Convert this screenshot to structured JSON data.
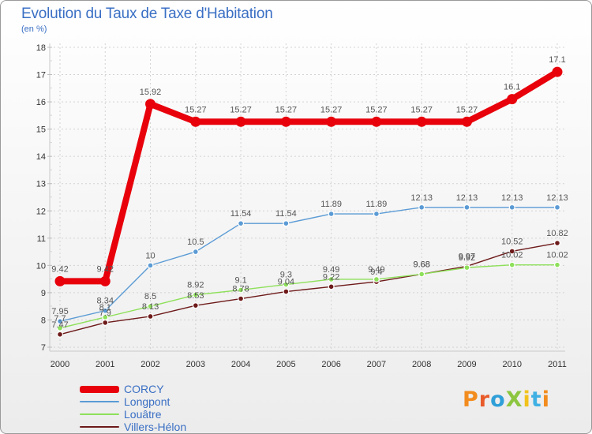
{
  "title": "Evolution du Taux de Taxe d'Habitation",
  "unit_label": "(en %)",
  "logo": {
    "text": "ProXiti",
    "colors": [
      "#f28c1e",
      "#e85a2a",
      "#2f9fd8",
      "#8cc63f",
      "#f2c21b",
      "#3fb0e3",
      "#f28c1e"
    ]
  },
  "chart_data": {
    "type": "line",
    "title": "Evolution du Taux de Taxe d'Habitation",
    "ylabel": "(en %)",
    "xlabel": "",
    "ylim": [
      7,
      18
    ],
    "yticks": [
      "7",
      "8",
      "9",
      "10",
      "11",
      "12",
      "13",
      "14",
      "15",
      "16",
      "17",
      "18"
    ],
    "x": [
      "2000",
      "2001",
      "2002",
      "2003",
      "2004",
      "2005",
      "2006",
      "2007",
      "2008",
      "2009",
      "2010",
      "2011"
    ],
    "grid": true,
    "legend_position": "bottom-left",
    "series": [
      {
        "name": "CORCY",
        "color": "#e8000b",
        "values": [
          9.42,
          9.42,
          15.92,
          15.27,
          15.27,
          15.27,
          15.27,
          15.27,
          15.27,
          15.27,
          16.1,
          17.1
        ],
        "labels": [
          "9.42",
          "9.42",
          "15.92",
          "15.27",
          "15.27",
          "15.27",
          "15.27",
          "15.27",
          "15.27",
          "15.27",
          "16.1",
          "17.1"
        ]
      },
      {
        "name": "Longpont",
        "color": "#5b9bd5",
        "values": [
          7.95,
          8.34,
          10,
          10.5,
          11.54,
          11.54,
          11.89,
          11.89,
          12.13,
          12.13,
          12.13,
          12.13
        ],
        "labels": [
          "7.95",
          "8.34",
          "10",
          "10.5",
          "11.54",
          "11.54",
          "11.89",
          "11.89",
          "12.13",
          "12.13",
          "12.13",
          "12.13"
        ]
      },
      {
        "name": "Louâtre",
        "color": "#8ee05a",
        "values": [
          7.7,
          8.1,
          8.5,
          8.92,
          9.1,
          9.3,
          9.49,
          9.49,
          9.68,
          9.92,
          10.02,
          10.02
        ],
        "labels": [
          "7.7",
          "8.1",
          "8.5",
          "8.92",
          "9.1",
          "9.3",
          "9.49",
          "9.49",
          "9.68",
          "9.92",
          "10.02",
          "10.02"
        ]
      },
      {
        "name": "Villers-Hélon",
        "color": "#6e1a1a",
        "values": [
          7.47,
          7.9,
          8.13,
          8.53,
          8.78,
          9.04,
          9.22,
          9.4,
          9.68,
          9.97,
          10.52,
          10.82
        ],
        "labels": [
          "7.47",
          "7.9",
          "8.13",
          "8.53",
          "8.78",
          "9.04",
          "9.22",
          "9.4",
          "9.68",
          "9.97",
          "10.52",
          "10.82"
        ]
      }
    ]
  }
}
